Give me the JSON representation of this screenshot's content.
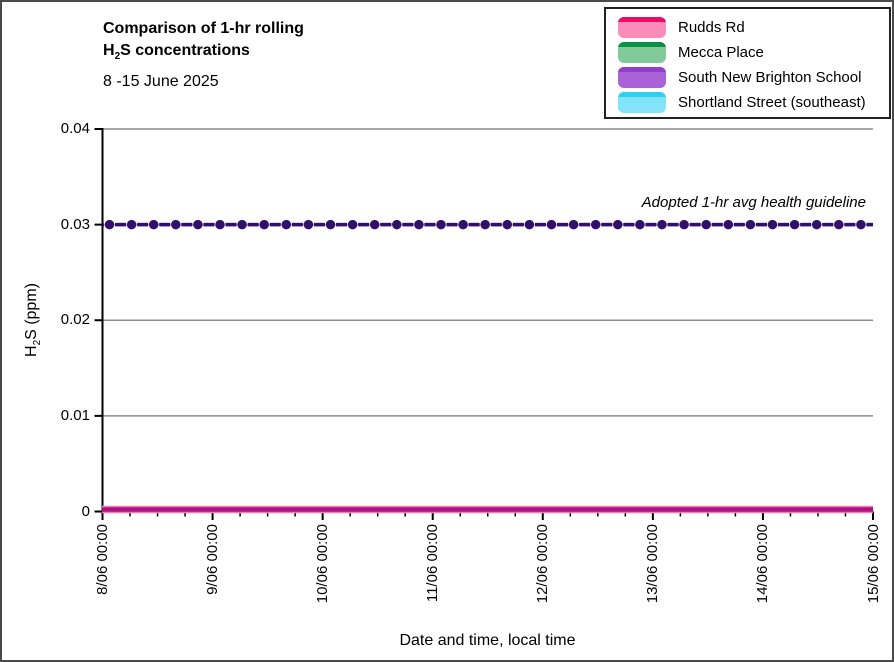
{
  "window": {
    "background": "#ffffff",
    "border_color": "#4a4a4a"
  },
  "labels": {
    "title_line1": "Comparison of 1-hr rolling",
    "title_line2_h": "H",
    "title_line2_sub": "2",
    "title_line2_rest": "S concentrations",
    "subtitle": "8 -15 June 2025",
    "xlabel": "Date and time, local time",
    "ylabel_h": "H",
    "ylabel_sub": "2",
    "ylabel_rest": "S (ppm)",
    "guideline_label": "Adopted 1-hr avg health guideline"
  },
  "chart_data": {
    "type": "line",
    "title": "Comparison of 1-hr rolling H2S concentrations",
    "subtitle": "8 -15 June 2025",
    "xlabel": "Date and time, local time",
    "ylabel": "H2S (ppm)",
    "ylim": [
      0,
      0.04
    ],
    "yticks": [
      0,
      0.01,
      0.02,
      0.03,
      0.04
    ],
    "ytick_labels": [
      "0",
      "0.01",
      "0.02",
      "0.03",
      "0.04"
    ],
    "xtick_labels": [
      "8/06 00:00",
      "9/06 00:00",
      "10/06 00:00",
      "11/06 00:00",
      "12/06 00:00",
      "13/06 00:00",
      "14/06 00:00",
      "15/06 00:00"
    ],
    "minor_xticks_per_interval": 3,
    "grid": {
      "horizontal": true,
      "color": "#8C8C8C"
    },
    "axis_color": "#000000",
    "legend_position": "top-right",
    "series": [
      {
        "name": "Rudds Rd",
        "line_color": "#EB0D63",
        "fill_color": "#F98CBA",
        "constant_value_ppm": 0
      },
      {
        "name": "Mecca Place",
        "line_color": "#0A9148",
        "fill_color": "#83CA9B",
        "constant_value_ppm": 0
      },
      {
        "name": "South New Brighton School",
        "line_color": "#9240CB",
        "fill_color": "#AA62D8",
        "constant_value_ppm": 0
      },
      {
        "name": "Shortland Street (southeast)",
        "line_color": "#2FD1F3",
        "fill_color": "#83E4F9",
        "constant_value_ppm": 0
      }
    ],
    "zero_band": {
      "edge_color": "#F07FB5",
      "core_color": "#AD1083"
    },
    "guideline": {
      "label": "Adopted 1-hr avg health guideline",
      "value_ppm": 0.03,
      "color": "#31106B",
      "backing_line_color": "#C3B5DB",
      "style": "dashed-with-round-markers"
    }
  }
}
